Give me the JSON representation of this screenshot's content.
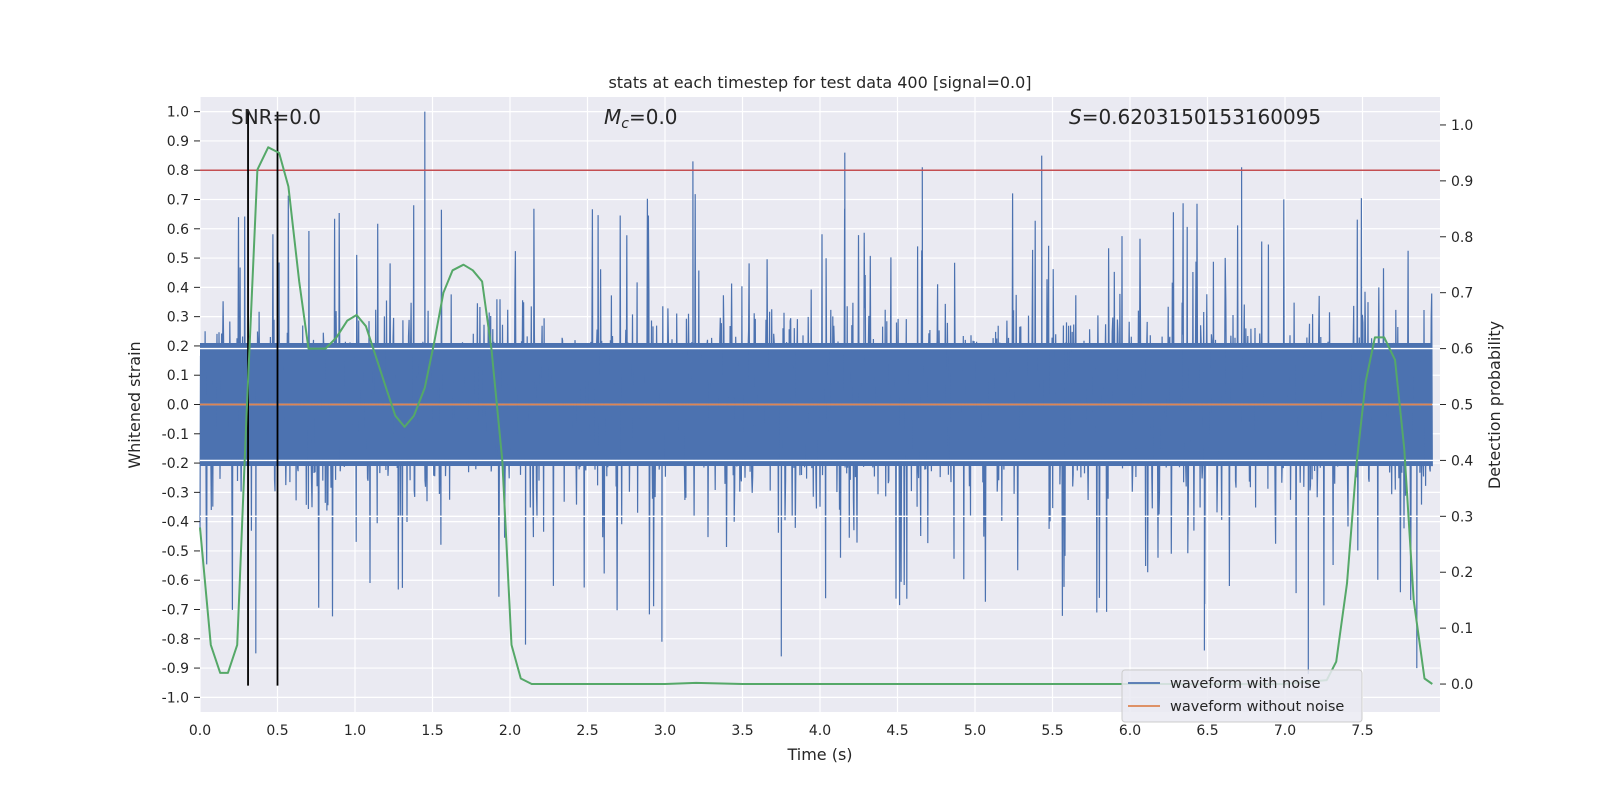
{
  "chart_data": {
    "type": "line",
    "title": "stats at each timestep for test data 400 [signal=0.0]",
    "xlabel": "Time (s)",
    "ylabel": "Whitened strain",
    "y2label": "Detection probability",
    "xlim": [
      0.0,
      8.0
    ],
    "ylim": [
      -1.05,
      1.05
    ],
    "y2lim": [
      -0.05,
      1.05
    ],
    "x_ticks": [
      0.0,
      0.5,
      1.0,
      1.5,
      2.0,
      2.5,
      3.0,
      3.5,
      4.0,
      4.5,
      5.0,
      5.5,
      6.0,
      6.5,
      7.0,
      7.5
    ],
    "x_tick_labels": [
      "0.0",
      "0.5",
      "1.0",
      "1.5",
      "2.0",
      "2.5",
      "3.0",
      "3.5",
      "4.0",
      "4.5",
      "5.0",
      "5.5",
      "6.0",
      "6.5",
      "7.0",
      "7.5"
    ],
    "y_ticks": [
      -1.0,
      -0.9,
      -0.8,
      -0.7,
      -0.6,
      -0.5,
      -0.4,
      -0.3,
      -0.2,
      -0.1,
      0.0,
      0.1,
      0.2,
      0.3,
      0.4,
      0.5,
      0.6,
      0.7,
      0.8,
      0.9,
      1.0
    ],
    "y_tick_labels": [
      "-1.0",
      "-0.9",
      "-0.8",
      "-0.7",
      "-0.6",
      "-0.5",
      "-0.4",
      "-0.3",
      "-0.2",
      "-0.1",
      "0.0",
      "0.1",
      "0.2",
      "0.3",
      "0.4",
      "0.5",
      "0.6",
      "0.7",
      "0.8",
      "0.9",
      "1.0"
    ],
    "y2_ticks": [
      0.0,
      0.1,
      0.2,
      0.3,
      0.4,
      0.5,
      0.6,
      0.7,
      0.8,
      0.9,
      1.0
    ],
    "y2_tick_labels": [
      "0.0",
      "0.1",
      "0.2",
      "0.3",
      "0.4",
      "0.5",
      "0.6",
      "0.7",
      "0.8",
      "0.9",
      "1.0"
    ],
    "grid": true,
    "annotations": {
      "snr": "SNR=0.0",
      "mc_symbol": "M",
      "mc_sub": "c",
      "mc_value": "=0.0",
      "s_symbol": "S",
      "s_value": "=0.6203150153160095"
    },
    "series": [
      {
        "name": "waveform with noise",
        "color": "#4c72b0",
        "kind": "noise",
        "core_amplitude": 0.3,
        "notable_peaks": [
          {
            "x": 1.45,
            "y": 1.0
          },
          {
            "x": 4.16,
            "y": 0.86
          },
          {
            "x": 5.43,
            "y": 0.85
          },
          {
            "x": 3.18,
            "y": 0.83
          },
          {
            "x": 6.72,
            "y": 0.81
          },
          {
            "x": 4.66,
            "y": 0.81
          },
          {
            "x": 7.15,
            "y": -0.92
          },
          {
            "x": 7.85,
            "y": -0.9
          },
          {
            "x": 3.75,
            "y": -0.86
          },
          {
            "x": 0.36,
            "y": -0.85
          },
          {
            "x": 6.48,
            "y": -0.84
          },
          {
            "x": 2.1,
            "y": -0.82
          },
          {
            "x": 2.98,
            "y": -0.81
          }
        ]
      },
      {
        "name": "waveform without noise",
        "color": "#dd8452",
        "values_constant": 0.0
      },
      {
        "name": "detection probability",
        "color": "#55a868",
        "axis": "right",
        "x": [
          0.0,
          0.07,
          0.13,
          0.18,
          0.24,
          0.3,
          0.37,
          0.44,
          0.51,
          0.57,
          0.64,
          0.7,
          0.75,
          0.81,
          0.88,
          0.95,
          1.01,
          1.07,
          1.13,
          1.2,
          1.26,
          1.32,
          1.38,
          1.45,
          1.51,
          1.57,
          1.63,
          1.7,
          1.76,
          1.82,
          1.88,
          1.95,
          2.01,
          2.07,
          2.14,
          2.3,
          3.0,
          3.2,
          3.5,
          4.5,
          5.5,
          6.5,
          7.0,
          7.27,
          7.33,
          7.4,
          7.46,
          7.52,
          7.58,
          7.64,
          7.71,
          7.77,
          7.83,
          7.9,
          7.95
        ],
        "values": [
          0.28,
          0.07,
          0.02,
          0.02,
          0.07,
          0.48,
          0.92,
          0.96,
          0.95,
          0.89,
          0.72,
          0.6,
          0.6,
          0.6,
          0.62,
          0.65,
          0.66,
          0.64,
          0.59,
          0.53,
          0.48,
          0.46,
          0.48,
          0.53,
          0.61,
          0.7,
          0.74,
          0.75,
          0.74,
          0.72,
          0.6,
          0.4,
          0.07,
          0.01,
          0.0,
          0.0,
          0.0,
          0.002,
          0.0,
          0.0,
          0.0,
          0.0,
          0.0,
          0.007,
          0.04,
          0.18,
          0.39,
          0.54,
          0.62,
          0.62,
          0.58,
          0.42,
          0.15,
          0.01,
          0.0
        ]
      }
    ],
    "hlines": [
      {
        "axis": "left",
        "y": 0.8,
        "color": "#c44e52"
      }
    ],
    "vlines": [
      {
        "x": 0.31,
        "y0": -0.96,
        "y1": 1.0,
        "color": "#000000"
      },
      {
        "x": 0.5,
        "y0": -0.96,
        "y1": 1.0,
        "color": "#000000"
      }
    ],
    "legend": {
      "placement": "lower-right",
      "entries": [
        {
          "label": "waveform with noise",
          "color": "#4c72b0"
        },
        {
          "label": "waveform without noise",
          "color": "#dd8452"
        }
      ]
    }
  }
}
